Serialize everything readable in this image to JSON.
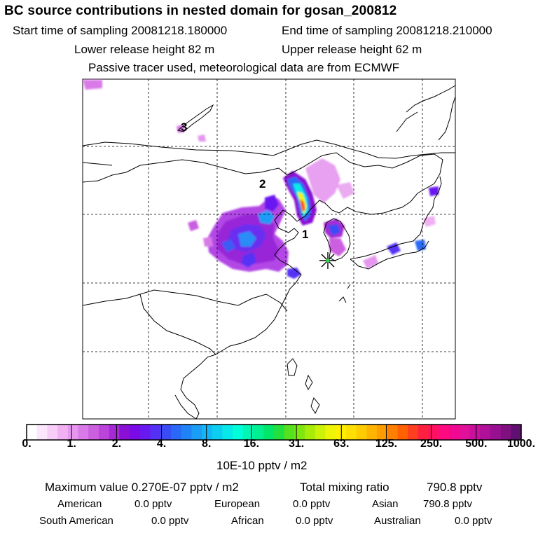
{
  "header": {
    "title": "BC  source contributions in nested domain for gosan_200812",
    "start_sampling": "Start time of sampling 20081218.180000",
    "end_sampling": "End time of sampling 20081218.210000",
    "lower_release": "Lower release height   82 m",
    "upper_release": "Upper release height   62 m",
    "note": "Passive tracer used, meteorological data are from ECMWF"
  },
  "chart_data": {
    "type": "heatmap",
    "title": "BC  source contributions in nested domain for gosan_200812",
    "map_labels": [
      "1",
      "2",
      "3"
    ],
    "receptor_marker": "star",
    "grid": true,
    "colorbar": {
      "unit": "10E-10 pptv / m2",
      "ticks": [
        "0.",
        "1.",
        "2.",
        "4.",
        "8.",
        "16.",
        "31.",
        "63.",
        "125.",
        "250.",
        "500.",
        "1000."
      ],
      "colors": [
        "#ffffff",
        "#fbe6fb",
        "#f7cdf7",
        "#f0b0f2",
        "#e596ee",
        "#d97ae8",
        "#cc5fe0",
        "#bb44da",
        "#a52ad7",
        "#8a10d6",
        "#7a0ae6",
        "#6a18f0",
        "#5530f5",
        "#3a4cf5",
        "#2a68f7",
        "#2082f7",
        "#1a9cf7",
        "#12b6f6",
        "#0ccff0",
        "#08e8e8",
        "#00ffd8",
        "#00f7b4",
        "#00ef90",
        "#00e66a",
        "#22e040",
        "#55e020",
        "#80e610",
        "#a8ec08",
        "#ccf208",
        "#eef408",
        "#fff000",
        "#ffe000",
        "#ffcc00",
        "#ffb400",
        "#ff9c00",
        "#ff8000",
        "#ff6000",
        "#ff4020",
        "#ff2040",
        "#ff1060",
        "#ff0a80",
        "#f00890",
        "#e0109a",
        "#c8109c",
        "#b0109a",
        "#981090",
        "#801080",
        "#601070"
      ]
    },
    "maximum_value": "0.270E-07 pptv / m2",
    "total_mixing_ratio": "790.8 pptv",
    "contributions": [
      {
        "region": "American",
        "value": "0.0 pptv"
      },
      {
        "region": "European",
        "value": "0.0 pptv"
      },
      {
        "region": "Asian",
        "value": "790.8 pptv"
      },
      {
        "region": "South American",
        "value": "0.0 pptv"
      },
      {
        "region": "African",
        "value": "0.0 pptv"
      },
      {
        "region": "Australian",
        "value": "0.0 pptv"
      }
    ]
  },
  "footer": {
    "max_label": "Maximum value  0.270E-07 pptv / m2",
    "total_label": "Total mixing ratio",
    "total_value": "790.8 pptv"
  }
}
